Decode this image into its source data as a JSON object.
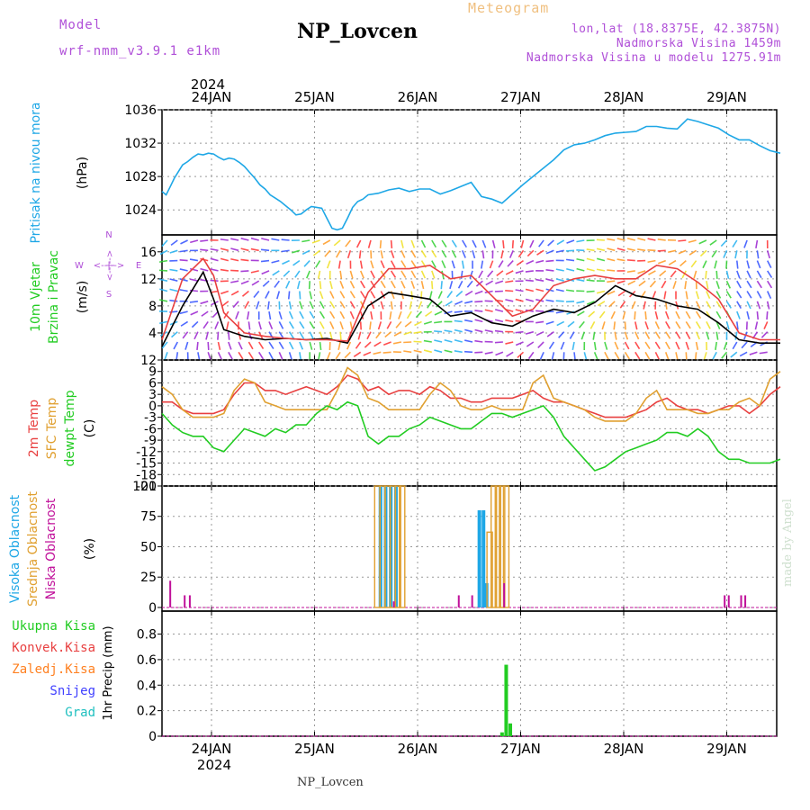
{
  "header": {
    "model_label": "Model",
    "model_name": "wrf-nmm_v3.9.1  e1km",
    "station": "NP_Lovcen",
    "product": "Meteogram",
    "lonlat": "lon,lat (18.8375E, 42.3875N)",
    "altitude": "Nadmorska Visina 1459m",
    "model_altitude": "Nadmorska Visina u modelu 1275.91m"
  },
  "footer": {
    "station": "NP_Lovcen"
  },
  "watermark": "made by Angel",
  "colors": {
    "pressure": "#1ea7e6",
    "wind_label": "#22cc22",
    "wind_axis": "#b050d8",
    "temp2m": "#e84040",
    "sfc": "#e0a030",
    "dew": "#22cc22",
    "high_cloud": "#1ea7e6",
    "mid_cloud": "#e0a030",
    "low_cloud": "#c0109a",
    "total_precip": "#22cc22",
    "conv": "#e84040",
    "frozen": "#ff8020",
    "snow": "#4040ff",
    "grad": "#20c0c0"
  },
  "chart_data": [
    {
      "type": "line",
      "id": "pressure",
      "ylabel": [
        "Pritisak na nivou mora",
        "(hPa)"
      ],
      "ylim": [
        1021,
        1036
      ],
      "yticks": [
        1024,
        1028,
        1032,
        1036
      ],
      "x_days": [
        0.0,
        0.04,
        0.08,
        0.12,
        0.16,
        0.2,
        0.25,
        0.3,
        0.35,
        0.4,
        0.45,
        0.5,
        0.55,
        0.6,
        0.65,
        0.7,
        0.75,
        0.8,
        0.85,
        0.9,
        0.95,
        1.0,
        1.05,
        1.1,
        1.15,
        1.2,
        1.25,
        1.3,
        1.35,
        1.4,
        1.45,
        1.5,
        1.55,
        1.6,
        1.65,
        1.7,
        1.75,
        1.8,
        1.85,
        1.9,
        1.95,
        2.0,
        2.1,
        2.2,
        2.3,
        2.4,
        2.5,
        2.6,
        2.7,
        2.8,
        2.9,
        3.0,
        3.1,
        3.2,
        3.3,
        3.4,
        3.5,
        3.6,
        3.7,
        3.8,
        3.9,
        4.0,
        4.1,
        4.2,
        4.3,
        4.4,
        4.5,
        4.6,
        4.7,
        4.8,
        4.9,
        5.0,
        5.1,
        5.2,
        5.3,
        5.4,
        5.5,
        5.6,
        5.7,
        5.8,
        5.9,
        6.0
      ],
      "series": [
        {
          "name": "pressure",
          "values": [
            1026.2,
            1025.8,
            1026.8,
            1027.8,
            1028.6,
            1029.4,
            1029.8,
            1030.3,
            1030.7,
            1030.6,
            1030.8,
            1030.7,
            1030.3,
            1030.0,
            1030.2,
            1030.1,
            1029.7,
            1029.2,
            1028.5,
            1027.8,
            1027.0,
            1026.5,
            1025.8,
            1025.4,
            1025.0,
            1024.5,
            1024.0,
            1023.4,
            1023.5,
            1024.0,
            1024.4,
            1024.3,
            1024.2,
            1023.0,
            1021.8,
            1021.6,
            1021.8,
            1023.0,
            1024.3,
            1025.0,
            1025.3,
            1025.8,
            1026.0,
            1026.4,
            1026.6,
            1026.2,
            1026.5,
            1026.5,
            1025.9,
            1026.3,
            1026.8,
            1027.3,
            1025.6,
            1025.3,
            1024.8,
            1025.9,
            1027.0,
            1028.0,
            1029.0,
            1030.0,
            1031.2,
            1031.8,
            1032.0,
            1032.4,
            1032.9,
            1033.2,
            1033.3,
            1033.4,
            1034.0,
            1034.0,
            1033.8,
            1033.7,
            1034.9,
            1034.6,
            1034.2,
            1033.8,
            1033.0,
            1032.4,
            1032.4,
            1031.7,
            1031.1,
            1030.8
          ]
        }
      ]
    },
    {
      "type": "line",
      "id": "wind",
      "ylabel": [
        "10m Vjetar",
        "Brzina i Pravac",
        "(m/s)"
      ],
      "compass": [
        "N",
        "W",
        "E",
        "S",
        "<--|-->",
        "<--|-->"
      ],
      "ylim": [
        0,
        18.5
      ],
      "yticks": [
        4,
        8,
        12,
        16
      ],
      "x_days": [
        0,
        0.2,
        0.4,
        0.5,
        0.6,
        0.8,
        1.0,
        1.2,
        1.4,
        1.6,
        1.8,
        2.0,
        2.2,
        2.4,
        2.6,
        2.8,
        3.0,
        3.2,
        3.4,
        3.6,
        3.8,
        4.0,
        4.2,
        4.4,
        4.6,
        4.8,
        5.0,
        5.2,
        5.4,
        5.6,
        5.8,
        6.0
      ],
      "series": [
        {
          "name": "speed",
          "values": [
            2.0,
            8.0,
            13.0,
            9.0,
            4.5,
            3.5,
            3.0,
            3.2,
            3.0,
            3.2,
            2.5,
            8.0,
            10.0,
            9.5,
            9.0,
            6.5,
            7.0,
            5.5,
            5.0,
            6.5,
            7.5,
            7.0,
            8.5,
            11.0,
            9.5,
            9.0,
            8.0,
            7.5,
            5.5,
            3.0,
            2.5,
            2.5
          ]
        },
        {
          "name": "gust",
          "values": [
            3.0,
            12.0,
            15.0,
            12.5,
            7.0,
            4.0,
            3.5,
            3.2,
            3.0,
            3.0,
            2.8,
            10.0,
            13.5,
            13.5,
            14.0,
            12.0,
            12.5,
            9.5,
            6.5,
            7.5,
            11.0,
            12.0,
            12.5,
            12.0,
            12.0,
            14.0,
            13.5,
            11.5,
            9.0,
            4.0,
            3.0,
            3.0
          ]
        }
      ]
    },
    {
      "type": "line",
      "id": "temperature",
      "ylabel": [
        "2m Temp",
        "SFC Temp",
        "dewpt Temp",
        "(C)"
      ],
      "ylim": [
        -21,
        12
      ],
      "yticks": [
        12,
        9,
        6,
        3,
        0,
        -3,
        -6,
        -9,
        -12,
        -15,
        -18,
        -21
      ],
      "x_days": [
        0,
        0.1,
        0.2,
        0.3,
        0.4,
        0.5,
        0.6,
        0.7,
        0.8,
        0.9,
        1.0,
        1.1,
        1.2,
        1.3,
        1.4,
        1.5,
        1.6,
        1.7,
        1.8,
        1.9,
        2.0,
        2.1,
        2.2,
        2.3,
        2.4,
        2.5,
        2.6,
        2.7,
        2.8,
        2.9,
        3.0,
        3.1,
        3.2,
        3.3,
        3.4,
        3.5,
        3.6,
        3.7,
        3.8,
        3.9,
        4.0,
        4.1,
        4.2,
        4.3,
        4.4,
        4.5,
        4.6,
        4.7,
        4.8,
        4.9,
        5.0,
        5.1,
        5.2,
        5.3,
        5.4,
        5.5,
        5.6,
        5.7,
        5.8,
        5.9,
        6.0
      ],
      "series": [
        {
          "name": "2m",
          "values": [
            1,
            1,
            -1,
            -2,
            -2,
            -2,
            -1,
            3,
            6,
            6,
            4,
            4,
            3,
            4,
            5,
            4,
            3,
            5,
            8,
            7,
            4,
            5,
            3,
            4,
            4,
            3,
            5,
            4,
            2,
            2,
            1,
            1,
            2,
            2,
            2,
            3,
            4,
            2,
            1,
            1,
            0,
            -1,
            -2,
            -3,
            -3,
            -3,
            -2,
            -1,
            1,
            2,
            0,
            -1,
            -1,
            -2,
            -1,
            0,
            0,
            -2,
            0,
            3,
            5
          ]
        },
        {
          "name": "SFC",
          "values": [
            5,
            3,
            -1,
            -3,
            -3,
            -3,
            -2,
            4,
            7,
            6,
            1,
            0,
            -1,
            -1,
            -1,
            -1,
            -1,
            4,
            10,
            8,
            2,
            1,
            -1,
            -1,
            -1,
            -1,
            3,
            6,
            4,
            0,
            -1,
            -1,
            0,
            -1,
            -1,
            -1,
            6,
            8,
            2,
            1,
            0,
            -1,
            -3,
            -4,
            -4,
            -4,
            -2,
            2,
            4,
            -1,
            -1,
            -1,
            -2,
            -2,
            -1,
            -1,
            1,
            2,
            0,
            7,
            9
          ]
        },
        {
          "name": "dewpt",
          "values": [
            -2,
            -5,
            -7,
            -8,
            -8,
            -11,
            -12,
            -9,
            -6,
            -7,
            -8,
            -6,
            -7,
            -5,
            -5,
            -2,
            0,
            -1,
            1,
            0,
            -8,
            -10,
            -8,
            -8,
            -6,
            -5,
            -3,
            -4,
            -5,
            -6,
            -6,
            -4,
            -2,
            -2,
            -3,
            -2,
            -1,
            0,
            -3,
            -8,
            -11,
            -14,
            -17,
            -16,
            -14,
            -12,
            -11,
            -10,
            -9,
            -7,
            -7,
            -8,
            -6,
            -8,
            -12,
            -14,
            -14,
            -15,
            -15,
            -15,
            -14
          ]
        }
      ]
    },
    {
      "type": "bar",
      "id": "cloud",
      "ylabel": [
        "Visoka Oblacnost",
        "Srednja Oblacnost",
        "Niska Oblacnost",
        "(%)"
      ],
      "ylim": [
        -3,
        100
      ],
      "yticks": [
        0,
        25,
        50,
        75,
        100
      ],
      "series": [
        {
          "name": "high",
          "x": [
            2.12,
            2.17,
            2.22,
            2.27,
            3.08,
            3.12,
            3.15
          ],
          "values": [
            100,
            100,
            100,
            100,
            80,
            80,
            20
          ]
        },
        {
          "name": "mid",
          "x": [
            2.09,
            2.14,
            2.19,
            2.24,
            2.29,
            2.33,
            3.18,
            3.22,
            3.26,
            3.3,
            3.34
          ],
          "values": [
            100,
            100,
            100,
            100,
            100,
            100,
            62,
            100,
            100,
            100,
            100
          ]
        },
        {
          "name": "low",
          "x": [
            0.08,
            0.22,
            0.27,
            2.88,
            3.01,
            2.25,
            3.32,
            5.46,
            5.5,
            5.62,
            5.66
          ],
          "values": [
            22,
            10,
            10,
            10,
            10,
            5,
            20,
            10,
            10,
            10,
            10
          ]
        }
      ]
    },
    {
      "type": "bar",
      "id": "precip",
      "ylabel": [
        "1hr Precip (mm)"
      ],
      "legend": [
        "Ukupna Kisa",
        "Konvek.Kisa",
        "Zaledj.Kisa",
        "Snijeg",
        "Grad"
      ],
      "ylim": [
        0,
        0.98
      ],
      "yticks": [
        0,
        0.2,
        0.4,
        0.6,
        0.8
      ],
      "series": [
        {
          "name": "total",
          "x": [
            3.3,
            3.34,
            3.38
          ],
          "values": [
            0.03,
            0.56,
            0.1
          ]
        }
      ]
    }
  ],
  "xaxis": {
    "top_year": "2024",
    "bottom_year": "2024",
    "ticks": [
      "24JAN",
      "25JAN",
      "26JAN",
      "27JAN",
      "28JAN",
      "29JAN"
    ]
  }
}
